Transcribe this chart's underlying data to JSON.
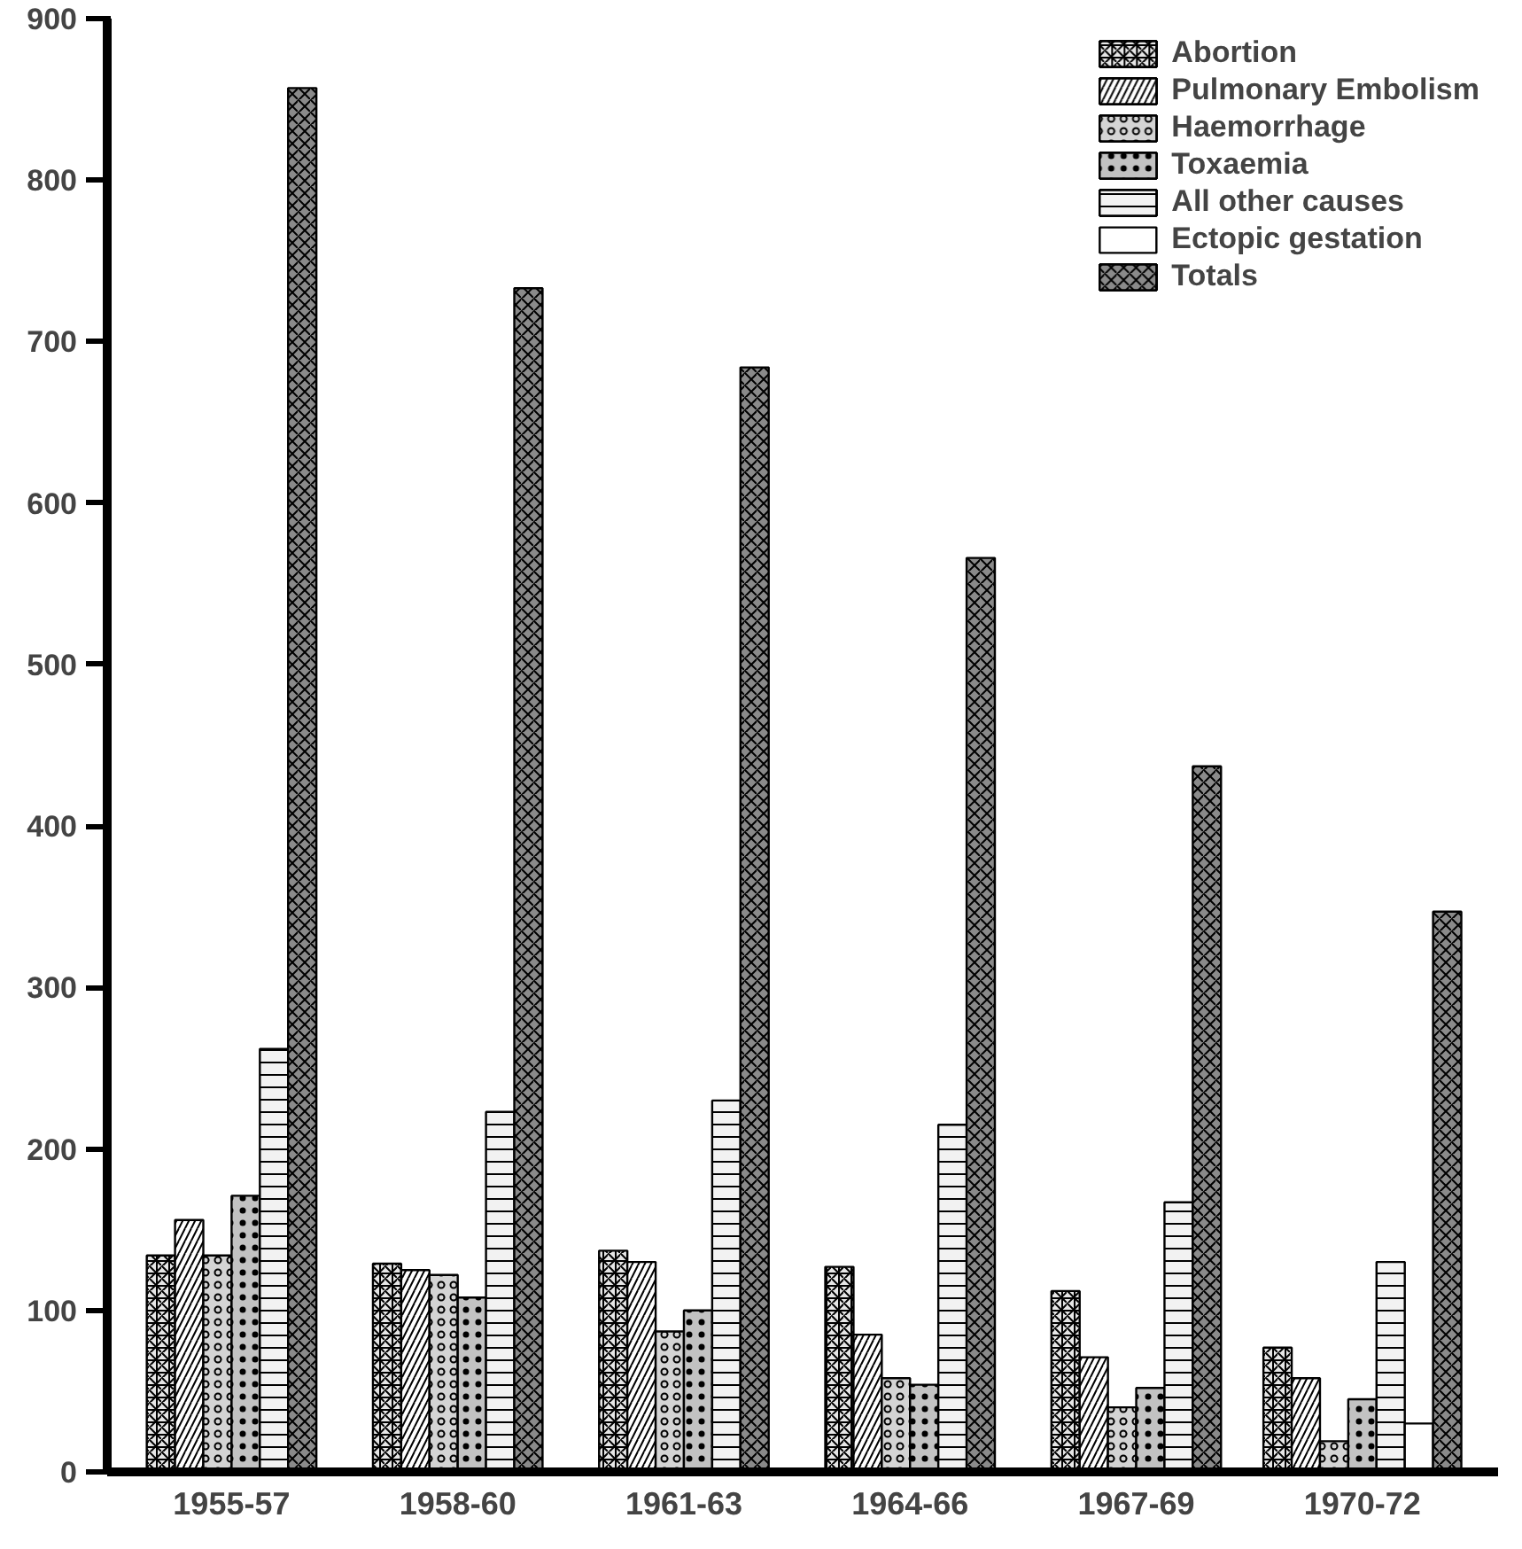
{
  "chart_data": {
    "type": "bar",
    "categories": [
      "1955-57",
      "1958-60",
      "1961-63",
      "1964-66",
      "1967-69",
      "1970-72"
    ],
    "series": [
      {
        "name": "Abortion",
        "color": "#e6e6e6",
        "values": [
          134,
          129,
          137,
          127,
          112,
          77
        ]
      },
      {
        "name": "Pulmonary Embolism",
        "color": "#ffffff",
        "values": [
          156,
          125,
          130,
          85,
          71,
          58
        ]
      },
      {
        "name": "Haemorrhage",
        "color": "#d4d4d4",
        "values": [
          134,
          122,
          87,
          58,
          40,
          19
        ]
      },
      {
        "name": "Toxaemia",
        "color": "#c2c2c2",
        "values": [
          171,
          108,
          100,
          54,
          52,
          45
        ]
      },
      {
        "name": "All other causes",
        "color": "#f2f2f2",
        "values": [
          262,
          223,
          230,
          215,
          167,
          130
        ]
      },
      {
        "name": "Ectopic gestation",
        "color": "#ffffff",
        "values": [
          null,
          null,
          null,
          null,
          null,
          30
        ]
      },
      {
        "name": "Totals",
        "color": "#8a8a8a",
        "values": [
          857,
          733,
          684,
          566,
          437,
          347
        ]
      }
    ],
    "ylim": [
      0,
      900
    ],
    "yticks": [
      0,
      100,
      200,
      300,
      400,
      500,
      600,
      700,
      800,
      900
    ],
    "grid": false,
    "legend": "top right"
  }
}
